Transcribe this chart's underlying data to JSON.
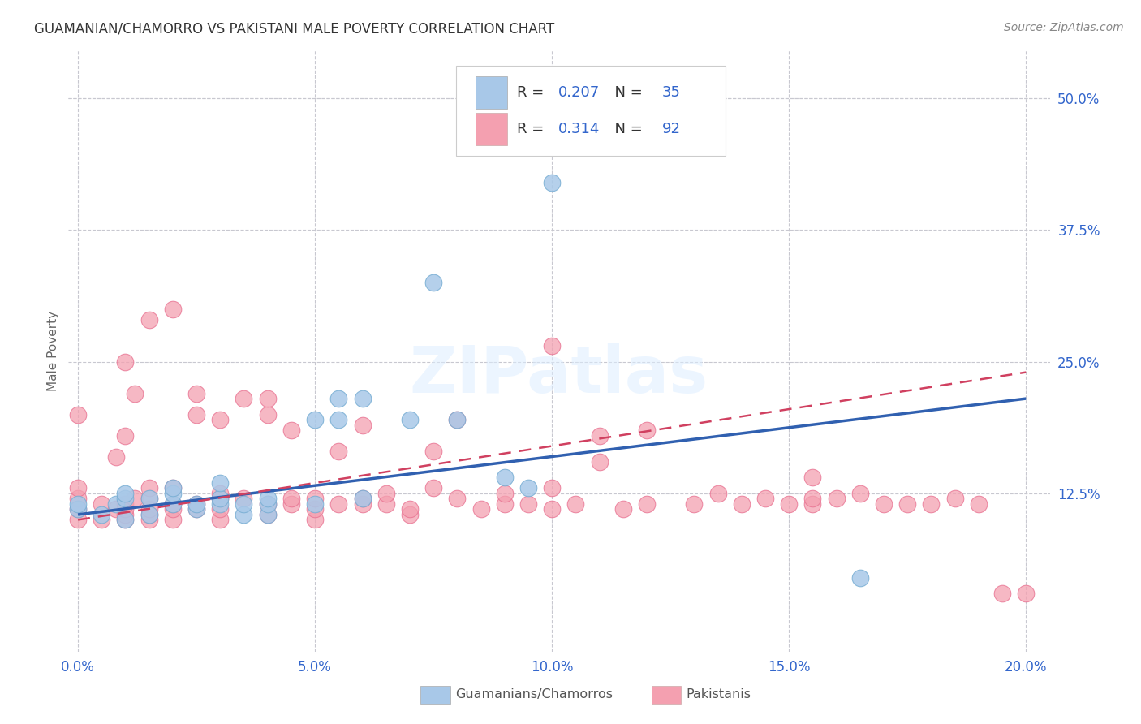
{
  "title": "GUAMANIAN/CHAMORRO VS PAKISTANI MALE POVERTY CORRELATION CHART",
  "source": "Source: ZipAtlas.com",
  "xlabel_ticks": [
    "0.0%",
    "5.0%",
    "10.0%",
    "15.0%",
    "20.0%"
  ],
  "ylabel_label": "Male Poverty",
  "right_ytick_labels": [
    "50.0%",
    "37.5%",
    "25.0%",
    "12.5%"
  ],
  "right_ytick_vals": [
    0.5,
    0.375,
    0.25,
    0.125
  ],
  "xlim": [
    -0.002,
    0.205
  ],
  "ylim": [
    -0.025,
    0.545
  ],
  "blue_color": "#a8c8e8",
  "pink_color": "#f4a0b0",
  "blue_edge_color": "#7aafd4",
  "pink_edge_color": "#e87090",
  "blue_line_color": "#3060b0",
  "pink_line_color": "#d04060",
  "legend_R_blue": "0.207",
  "legend_N_blue": "35",
  "legend_R_pink": "0.314",
  "legend_N_pink": "92",
  "watermark": "ZIPatlas",
  "accent_blue": "#3366cc",
  "blue_scatter_x": [
    0.0,
    0.0,
    0.005,
    0.008,
    0.01,
    0.01,
    0.01,
    0.015,
    0.015,
    0.02,
    0.02,
    0.02,
    0.025,
    0.025,
    0.03,
    0.03,
    0.03,
    0.035,
    0.035,
    0.04,
    0.04,
    0.04,
    0.05,
    0.05,
    0.055,
    0.055,
    0.06,
    0.06,
    0.07,
    0.075,
    0.08,
    0.09,
    0.095,
    0.1,
    0.165
  ],
  "blue_scatter_y": [
    0.11,
    0.115,
    0.105,
    0.115,
    0.1,
    0.12,
    0.125,
    0.105,
    0.12,
    0.115,
    0.125,
    0.13,
    0.11,
    0.115,
    0.115,
    0.12,
    0.135,
    0.105,
    0.115,
    0.105,
    0.115,
    0.12,
    0.115,
    0.195,
    0.195,
    0.215,
    0.12,
    0.215,
    0.195,
    0.325,
    0.195,
    0.14,
    0.13,
    0.42,
    0.045
  ],
  "pink_scatter_x": [
    0.0,
    0.0,
    0.0,
    0.0,
    0.0,
    0.005,
    0.005,
    0.008,
    0.008,
    0.01,
    0.01,
    0.01,
    0.01,
    0.01,
    0.01,
    0.012,
    0.012,
    0.015,
    0.015,
    0.015,
    0.015,
    0.015,
    0.015,
    0.02,
    0.02,
    0.02,
    0.02,
    0.02,
    0.025,
    0.025,
    0.025,
    0.025,
    0.03,
    0.03,
    0.03,
    0.03,
    0.03,
    0.035,
    0.035,
    0.04,
    0.04,
    0.04,
    0.04,
    0.045,
    0.045,
    0.045,
    0.05,
    0.05,
    0.05,
    0.055,
    0.055,
    0.06,
    0.06,
    0.06,
    0.065,
    0.065,
    0.07,
    0.07,
    0.075,
    0.075,
    0.08,
    0.08,
    0.085,
    0.09,
    0.09,
    0.095,
    0.1,
    0.1,
    0.1,
    0.105,
    0.11,
    0.11,
    0.115,
    0.12,
    0.12,
    0.13,
    0.135,
    0.14,
    0.145,
    0.15,
    0.155,
    0.155,
    0.155,
    0.16,
    0.165,
    0.17,
    0.175,
    0.18,
    0.185,
    0.19,
    0.195,
    0.2
  ],
  "pink_scatter_y": [
    0.1,
    0.11,
    0.12,
    0.13,
    0.2,
    0.1,
    0.115,
    0.11,
    0.16,
    0.1,
    0.105,
    0.11,
    0.115,
    0.18,
    0.25,
    0.12,
    0.22,
    0.1,
    0.105,
    0.11,
    0.12,
    0.13,
    0.29,
    0.1,
    0.11,
    0.115,
    0.13,
    0.3,
    0.11,
    0.115,
    0.2,
    0.22,
    0.1,
    0.11,
    0.12,
    0.125,
    0.195,
    0.12,
    0.215,
    0.105,
    0.115,
    0.2,
    0.215,
    0.115,
    0.12,
    0.185,
    0.1,
    0.11,
    0.12,
    0.115,
    0.165,
    0.115,
    0.12,
    0.19,
    0.115,
    0.125,
    0.105,
    0.11,
    0.13,
    0.165,
    0.12,
    0.195,
    0.11,
    0.115,
    0.125,
    0.115,
    0.11,
    0.13,
    0.265,
    0.115,
    0.155,
    0.18,
    0.11,
    0.115,
    0.185,
    0.115,
    0.125,
    0.115,
    0.12,
    0.115,
    0.115,
    0.12,
    0.14,
    0.12,
    0.125,
    0.115,
    0.115,
    0.115,
    0.12,
    0.115,
    0.03,
    0.03
  ],
  "blue_line_x0": 0.0,
  "blue_line_y0": 0.105,
  "blue_line_x1": 0.2,
  "blue_line_y1": 0.215,
  "pink_line_x0": 0.0,
  "pink_line_y0": 0.1,
  "pink_line_x1": 0.2,
  "pink_line_y1": 0.24
}
